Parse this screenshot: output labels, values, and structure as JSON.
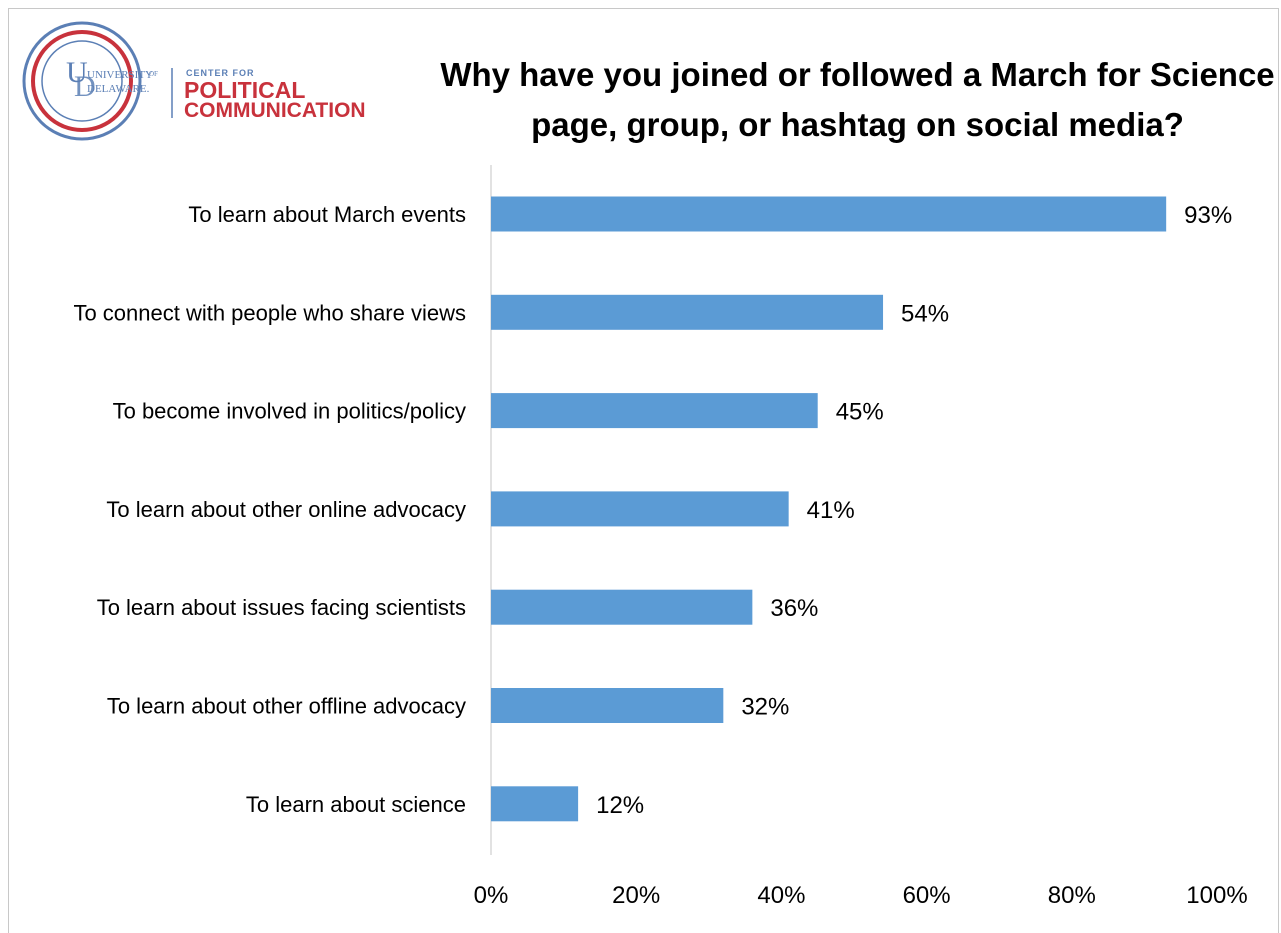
{
  "logo": {
    "university_line1": "UNIVERSITY",
    "university_of": "OF",
    "university_line2": "DELAWARE.",
    "center_for": "CENTER FOR",
    "political": "POLITICAL",
    "communication": "COMMUNICATION",
    "colors": {
      "blue": "#5b7fb5",
      "red": "#c8323c"
    }
  },
  "chart_data": {
    "type": "bar",
    "orientation": "horizontal",
    "title": "Why have you joined or followed a March for Science page, group, or hashtag on social media?",
    "title_lines": [
      "Why have you joined or followed a March for Science",
      "page, group, or hashtag on social media?"
    ],
    "categories": [
      "To learn about March events",
      "To connect with people who share views",
      "To become involved in politics/policy",
      "To learn about other online advocacy",
      "To learn about issues facing scientists",
      "To learn about other offline advocacy",
      "To learn about science"
    ],
    "values": [
      93,
      54,
      45,
      41,
      36,
      32,
      12
    ],
    "value_labels": [
      "93%",
      "54%",
      "45%",
      "41%",
      "36%",
      "32%",
      "12%"
    ],
    "xlim": [
      0,
      100
    ],
    "xticks": [
      0,
      20,
      40,
      60,
      80,
      100
    ],
    "xtick_labels": [
      "0%",
      "20%",
      "40%",
      "60%",
      "80%",
      "100%"
    ],
    "bar_color": "#5b9bd5",
    "axis_color": "#d9d9d9",
    "grid": false,
    "legend": "none"
  }
}
